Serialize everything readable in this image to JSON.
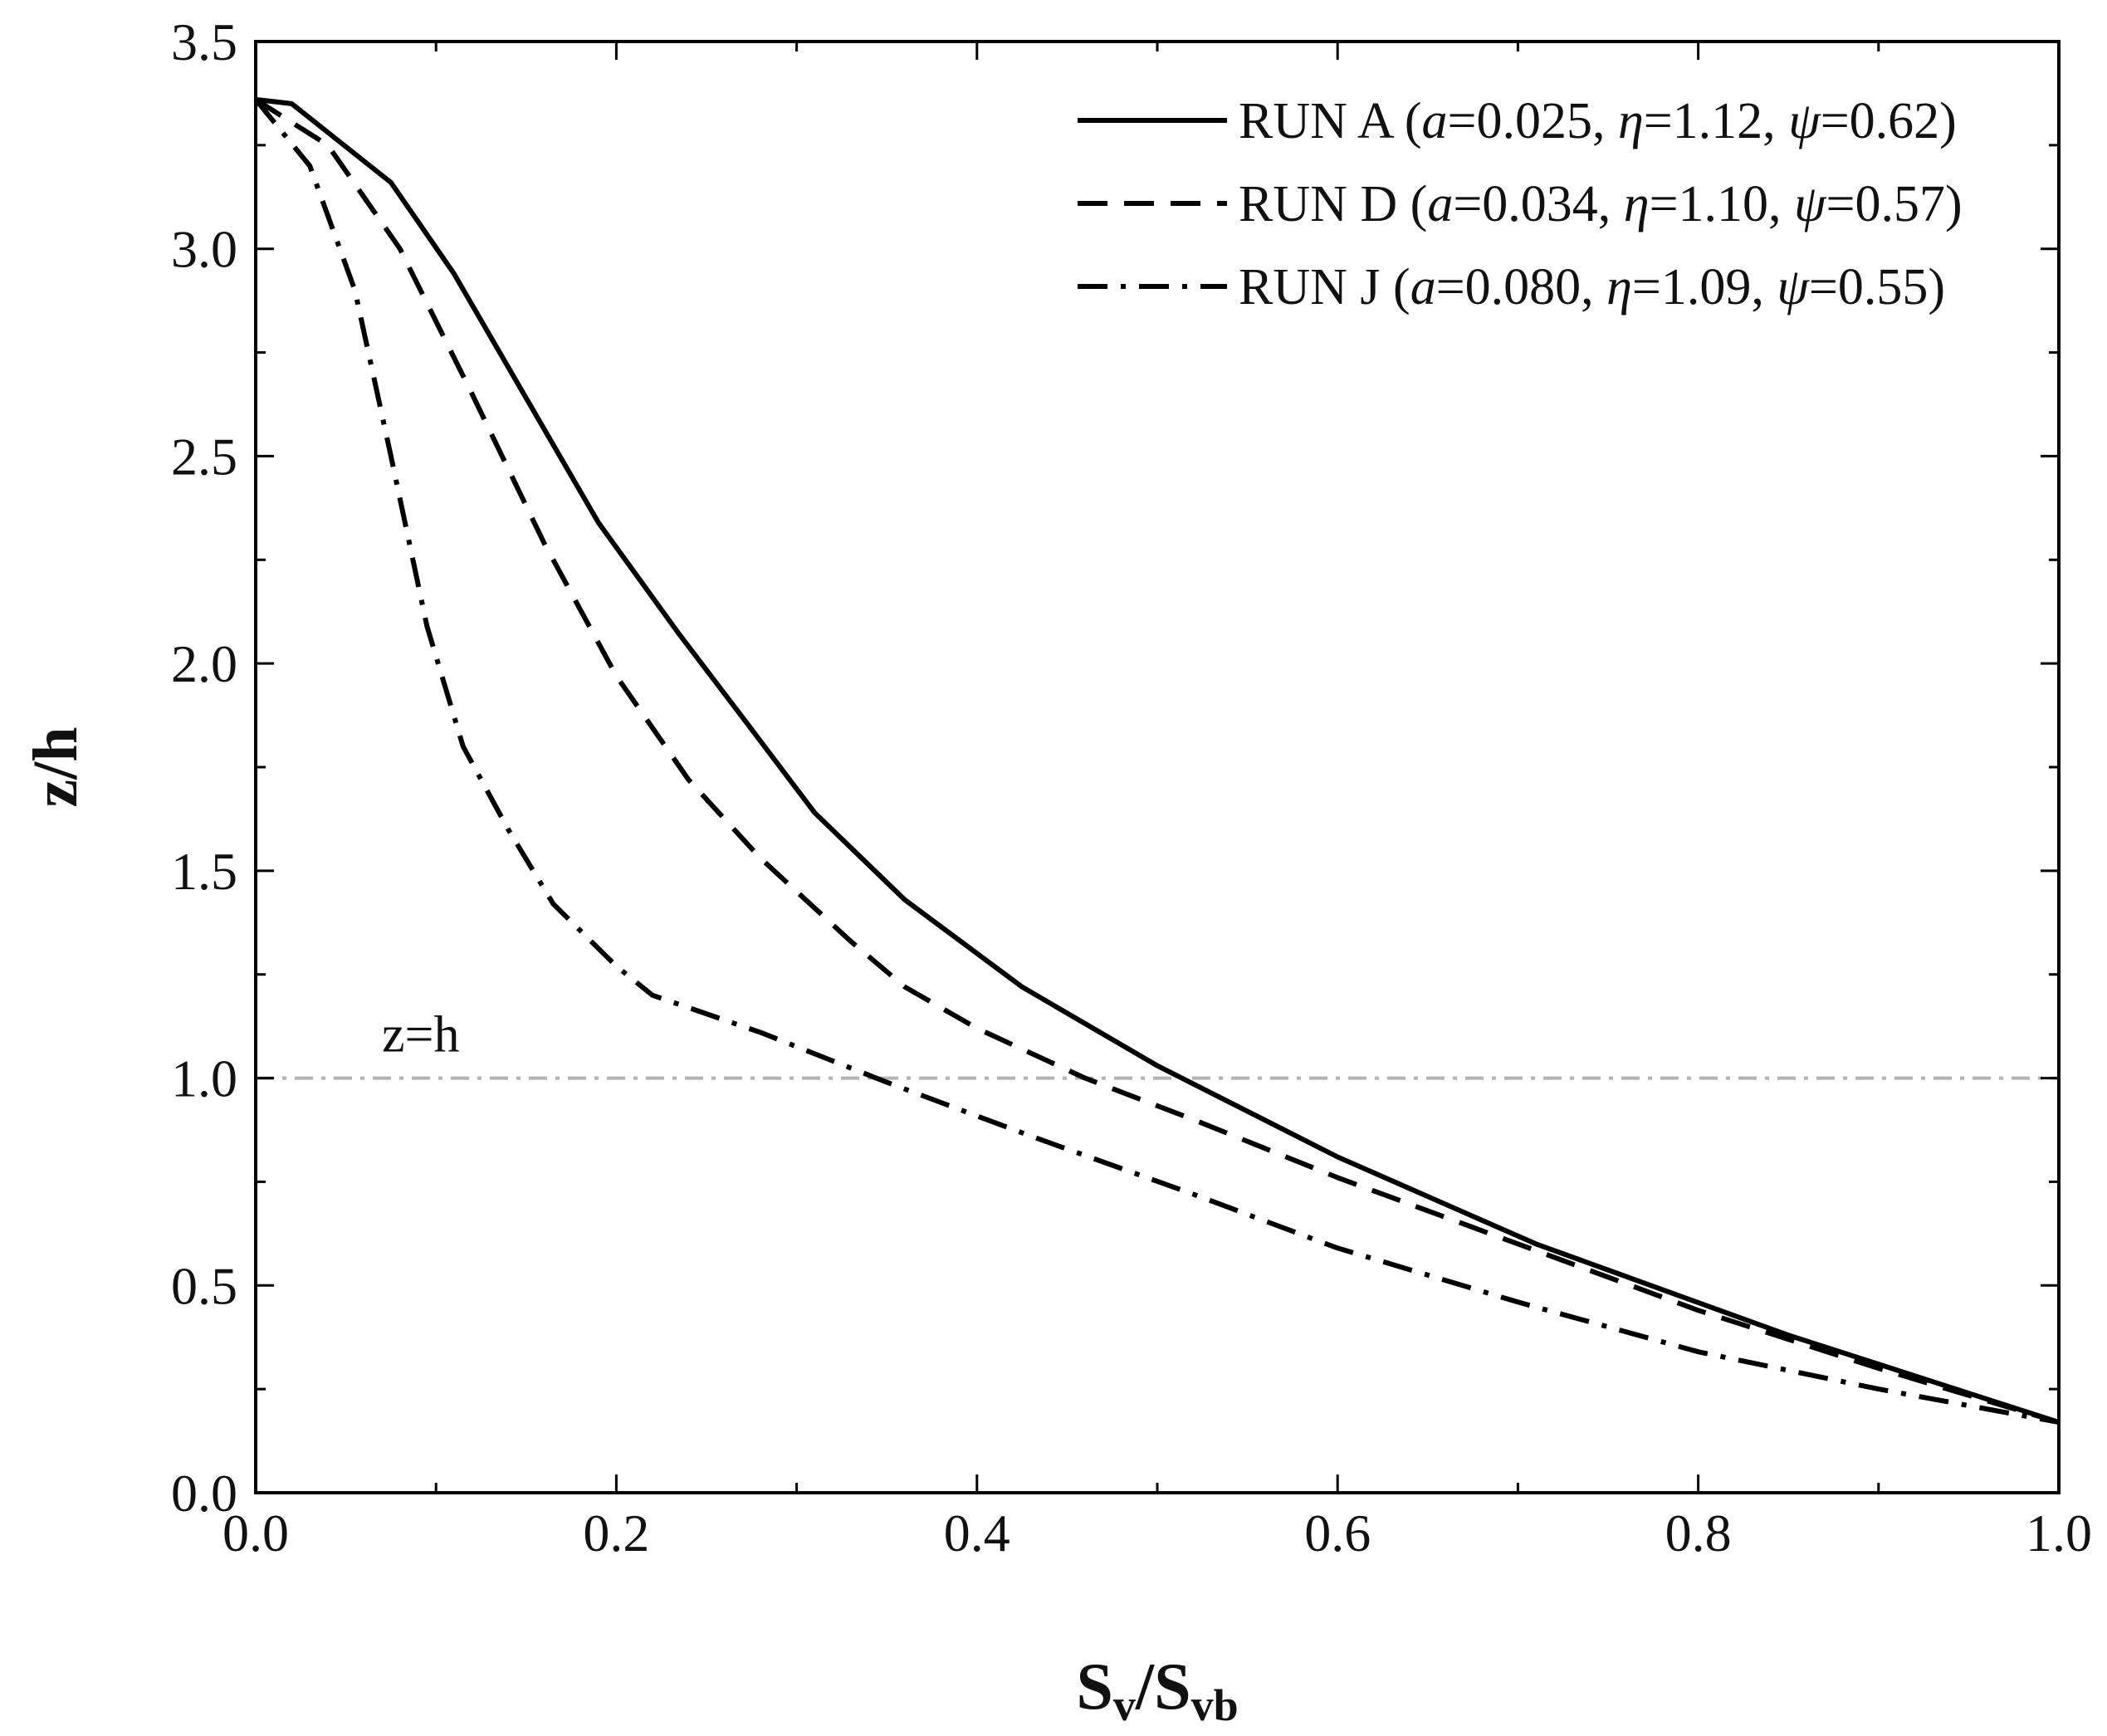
{
  "chart_data": {
    "type": "line",
    "xlabel": {
      "main": "S",
      "sub1": "v",
      "sep": "/S",
      "sub2": "vb"
    },
    "ylabel": "z/h",
    "xlim": [
      0,
      1.0
    ],
    "ylim": [
      0,
      3.5
    ],
    "xticks": [
      {
        "value": 0.0,
        "label": "0.0"
      },
      {
        "value": 0.2,
        "label": "0.2"
      },
      {
        "value": 0.4,
        "label": "0.4"
      },
      {
        "value": 0.6,
        "label": "0.6"
      },
      {
        "value": 0.8,
        "label": "0.8"
      },
      {
        "value": 1.0,
        "label": "1.0"
      }
    ],
    "yticks": [
      {
        "value": 0.0,
        "label": "0.0"
      },
      {
        "value": 0.5,
        "label": "0.5"
      },
      {
        "value": 1.0,
        "label": "1.0"
      },
      {
        "value": 1.5,
        "label": "1.5"
      },
      {
        "value": 2.0,
        "label": "2.0"
      },
      {
        "value": 2.5,
        "label": "2.5"
      },
      {
        "value": 3.0,
        "label": "3.0"
      },
      {
        "value": 3.5,
        "label": "3.5"
      }
    ],
    "legend_position": "top-right",
    "reference_line": {
      "y": 1.0,
      "label": "z=h",
      "color": "#b3b3b3"
    },
    "series": [
      {
        "name": "RUN A",
        "params": {
          "a": "0.025",
          "eta": "1.12",
          "psi": "0.62"
        },
        "style": "solid",
        "color": "#000000",
        "x": [
          0.0,
          0.02,
          0.075,
          0.11,
          0.15,
          0.19,
          0.235,
          0.27,
          0.31,
          0.36,
          0.425,
          0.5,
          0.6,
          0.71,
          0.85,
          1.0
        ],
        "y": [
          3.36,
          3.35,
          3.16,
          2.94,
          2.64,
          2.34,
          2.07,
          1.87,
          1.64,
          1.43,
          1.22,
          1.03,
          0.81,
          0.6,
          0.38,
          0.17
        ]
      },
      {
        "name": "RUN D",
        "params": {
          "a": "0.034",
          "eta": "1.10",
          "psi": "0.57"
        },
        "style": "dashed",
        "color": "#000000",
        "x": [
          0.0,
          0.04,
          0.08,
          0.12,
          0.16,
          0.2,
          0.24,
          0.28,
          0.33,
          0.36,
          0.4,
          0.46,
          0.52,
          0.6,
          0.7,
          0.8,
          0.9,
          1.0
        ],
        "y": [
          3.36,
          3.25,
          3.0,
          2.65,
          2.29,
          1.97,
          1.72,
          1.53,
          1.33,
          1.22,
          1.12,
          1.0,
          0.9,
          0.76,
          0.6,
          0.44,
          0.3,
          0.17
        ]
      },
      {
        "name": "RUN J",
        "params": {
          "a": "0.080",
          "eta": "1.09",
          "psi": "0.55"
        },
        "style": "dash-dot",
        "color": "#000000",
        "x": [
          0.0,
          0.03,
          0.055,
          0.075,
          0.095,
          0.115,
          0.14,
          0.165,
          0.2,
          0.22,
          0.28,
          0.35,
          0.43,
          0.52,
          0.6,
          0.7,
          0.8,
          0.9,
          1.0
        ],
        "y": [
          3.36,
          3.2,
          2.9,
          2.5,
          2.09,
          1.8,
          1.6,
          1.42,
          1.27,
          1.2,
          1.11,
          0.99,
          0.86,
          0.72,
          0.59,
          0.46,
          0.34,
          0.25,
          0.17
        ]
      }
    ]
  }
}
